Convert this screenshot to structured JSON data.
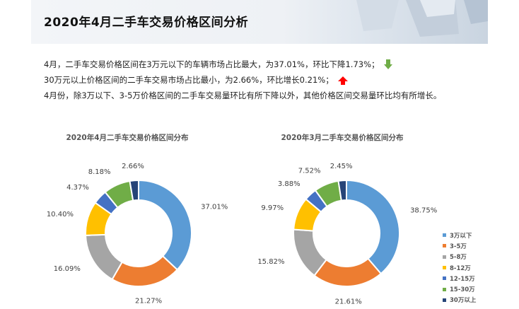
{
  "header": {
    "title": "2020年4月二手车交易价格区间分析"
  },
  "summary": {
    "line1": "4月，二手车交易价格区间在3万元以下的车辆市场占比最大，为37.01%，环比下降1.73%；",
    "line1_arrow": "down-arrow-icon",
    "line2": "30万元以上价格区间的二手车交易市场占比最小，为2.66%，环比增长0.21%；",
    "line2_arrow": "up-arrow-icon",
    "line3": "4月份，除3万以下、3-5万价格区间的二手车交易量环比有所下降以外，其他价格区间交易量环比均有所增长。"
  },
  "colors": {
    "down_arrow": "#70ad47",
    "up_arrow": "#ff0000",
    "series": [
      "#5b9bd5",
      "#ed7d31",
      "#a5a5a5",
      "#ffc000",
      "#4472c4",
      "#70ad47",
      "#264478"
    ]
  },
  "chart_data": [
    {
      "type": "pie",
      "variant": "donut",
      "title": "2020年4月二手车交易价格区间分布",
      "categories": [
        "3万以下",
        "3-5万",
        "5-8万",
        "8-12万",
        "12-15万",
        "15-30万",
        "30万以上"
      ],
      "values": [
        37.01,
        21.27,
        16.09,
        10.4,
        4.37,
        8.18,
        2.66
      ],
      "labels": [
        "37.01%",
        "21.27%",
        "16.09%",
        "10.40%",
        "4.37%",
        "8.18%",
        "2.66%"
      ]
    },
    {
      "type": "pie",
      "variant": "donut",
      "title": "2020年3月二手车交易价格区间分布",
      "categories": [
        "3万以下",
        "3-5万",
        "5-8万",
        "8-12万",
        "12-15万",
        "15-30万",
        "30万以上"
      ],
      "values": [
        38.75,
        21.61,
        15.82,
        9.97,
        3.88,
        7.52,
        2.45
      ],
      "labels": [
        "38.75%",
        "21.61%",
        "15.82%",
        "9.97%",
        "3.88%",
        "7.52%",
        "2.45%"
      ]
    }
  ],
  "legend": {
    "placement": "bottom-right",
    "items": [
      "3万以下",
      "3-5万",
      "5-8万",
      "8-12万",
      "12-15万",
      "15-30万",
      "30万以上"
    ]
  }
}
